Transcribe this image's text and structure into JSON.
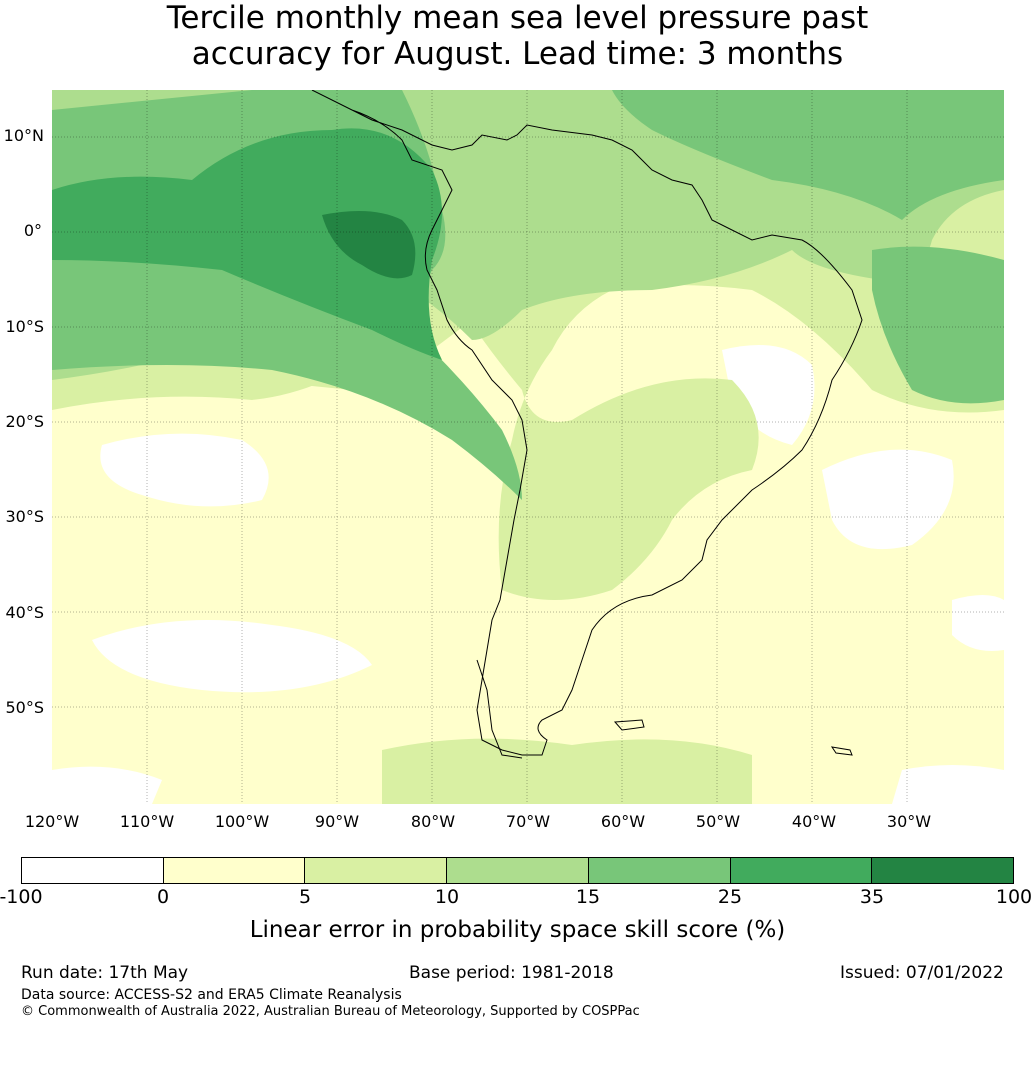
{
  "title_line1": "Tercile monthly mean sea level pressure past",
  "title_line2": "accuracy for August. Lead time: 3 months",
  "lat_labels": [
    "10°N",
    "0°",
    "10°S",
    "20°S",
    "30°S",
    "40°S",
    "50°S"
  ],
  "lon_labels": [
    "120°W",
    "110°W",
    "100°W",
    "90°W",
    "80°W",
    "70°W",
    "60°W",
    "50°W",
    "40°W",
    "30°W"
  ],
  "colorbar": {
    "ticks": [
      "-100",
      "0",
      "5",
      "10",
      "15",
      "25",
      "35",
      "100"
    ],
    "colors": [
      "#ffffff",
      "#ffffcc",
      "#d9f0a3",
      "#addd8e",
      "#78c679",
      "#41ab5d",
      "#238443"
    ],
    "title": "Linear error in probability space skill score (%)"
  },
  "footer": {
    "run_date": "Run date: 17th May",
    "base_period": "Base period: 1981-2018",
    "issued": "Issued: 07/01/2022",
    "data_source": "Data source: ACCESS-S2 and ERA5 Climate Reanalysis",
    "copyright": "© Commonwealth of Australia 2022, Australian Bureau of Meteorology, Supported by COSPPac"
  }
}
